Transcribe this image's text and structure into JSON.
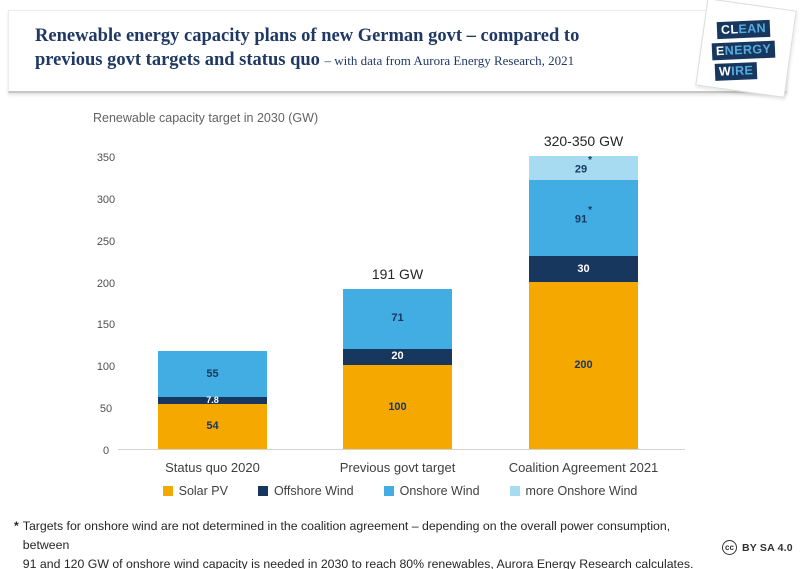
{
  "header": {
    "title_line1": "Renewable energy capacity plans of new German govt – compared to",
    "title_line2": "previous govt targets and status quo",
    "subtitle": "– with data from Aurora Energy Research, 2021"
  },
  "logo": {
    "words": [
      {
        "lead": "CL",
        "rest": "EAN"
      },
      {
        "lead": "E",
        "rest": "NERGY"
      },
      {
        "lead": "W",
        "rest": "IRE"
      }
    ],
    "colors": {
      "box": "#17375E",
      "lead": "#FFFFFF",
      "rest": "#56ACDF"
    }
  },
  "chart_data": {
    "type": "bar",
    "stacked": true,
    "title": "Renewable capacity target in 2030 (GW)",
    "categories": [
      "Status quo 2020",
      "Previous govt target",
      "Coalition Agreement 2021"
    ],
    "series": [
      {
        "name": "Solar PV",
        "color": "#F5A800",
        "label_color": "#17375E",
        "values": [
          54,
          100,
          200
        ],
        "labels": [
          "54",
          "100",
          "200"
        ]
      },
      {
        "name": "Offshore Wind",
        "color": "#17375E",
        "label_color": "#FFFFFF",
        "values": [
          7.8,
          20,
          30
        ],
        "labels": [
          "7.8",
          "20",
          "30"
        ]
      },
      {
        "name": "Onshore Wind",
        "color": "#41ADE2",
        "label_color": "#17375E",
        "values": [
          55,
          71,
          91
        ],
        "labels": [
          "55",
          "71",
          "91*"
        ]
      },
      {
        "name": "more Onshore Wind",
        "color": "#A6DBF2",
        "label_color": "#17375E",
        "values": [
          0,
          0,
          29
        ],
        "labels": [
          "",
          "",
          "29*"
        ]
      }
    ],
    "totals": [
      "",
      "191 GW",
      "320-350 GW"
    ],
    "ylim": [
      0,
      350
    ],
    "yticks": [
      0,
      50,
      100,
      150,
      200,
      250,
      300,
      350
    ],
    "xlabel": "",
    "ylabel": "Renewable capacity target in 2030 (GW)",
    "grid": false,
    "legend_position": "bottom"
  },
  "footnote": {
    "marker": "*",
    "line1": "Targets for onshore wind are not determined in the coalition agreement – depending on the overall power consumption, between",
    "line2": "91 and 120 GW of onshore wind capacity is needed in 2030 to reach 80% renewables, Aurora Energy Research calculates."
  },
  "license": {
    "icon": "cc",
    "label": "BY SA 4.0"
  }
}
